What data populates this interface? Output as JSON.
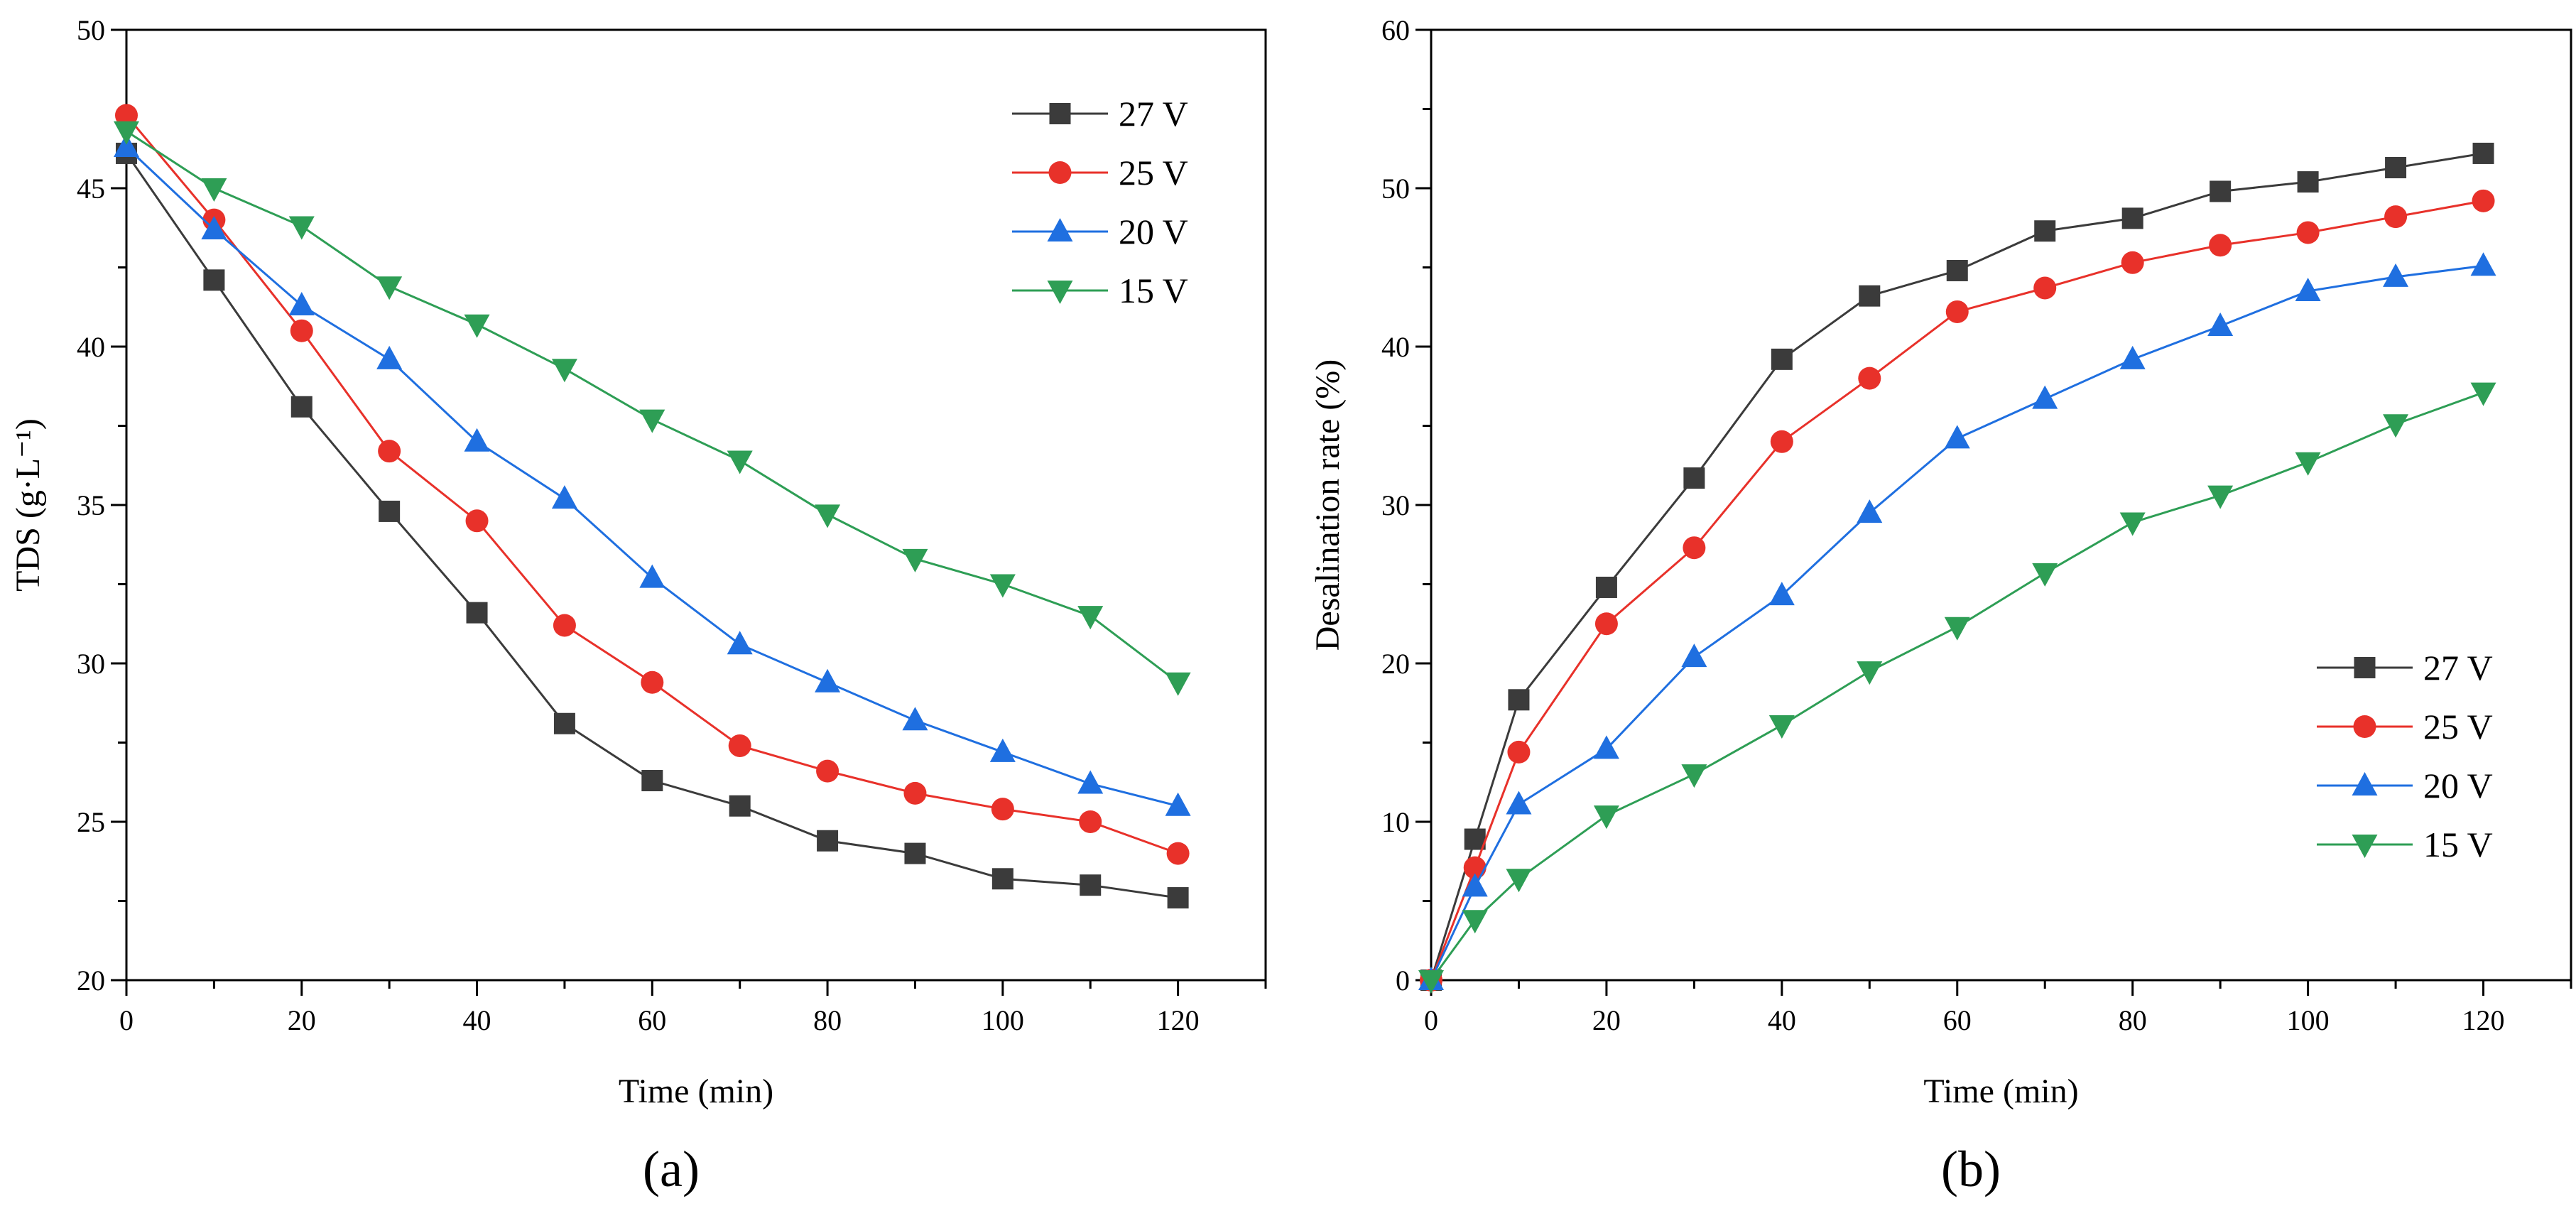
{
  "figure": {
    "background": "#ffffff"
  },
  "series_styles": {
    "27 V": {
      "color": "#3b3b3b",
      "marker": "square"
    },
    "25 V": {
      "color": "#e8312a",
      "marker": "circle"
    },
    "20 V": {
      "color": "#1f6fe0",
      "marker": "triangle-up"
    },
    "15 V": {
      "color": "#2e9e55",
      "marker": "triangle-down"
    }
  },
  "chart_data": [
    {
      "type": "line",
      "panel_label": "(a)",
      "xlabel": "Time (min)",
      "ylabel": "TDS (g·L⁻¹)",
      "xlim": [
        0,
        130
      ],
      "ylim": [
        20,
        50
      ],
      "xticks": [
        0,
        20,
        40,
        60,
        80,
        100,
        120
      ],
      "yticks": [
        20,
        25,
        30,
        35,
        40,
        45,
        50
      ],
      "x_minor_step": 10,
      "y_minor_step": 2.5,
      "legend_position": "top-right",
      "series": [
        {
          "name": "27 V",
          "x": [
            0,
            10,
            20,
            30,
            40,
            50,
            60,
            70,
            80,
            90,
            100,
            110,
            120
          ],
          "values": [
            46.1,
            42.1,
            38.1,
            34.8,
            31.6,
            28.1,
            26.3,
            25.5,
            24.4,
            24.0,
            23.2,
            23.0,
            22.6
          ]
        },
        {
          "name": "25 V",
          "x": [
            0,
            10,
            20,
            30,
            40,
            50,
            60,
            70,
            80,
            90,
            100,
            110,
            120
          ],
          "values": [
            47.3,
            44.0,
            40.5,
            36.7,
            34.5,
            31.2,
            29.4,
            27.4,
            26.6,
            25.9,
            25.4,
            25.0,
            24.0
          ]
        },
        {
          "name": "20 V",
          "x": [
            0,
            10,
            20,
            30,
            40,
            50,
            60,
            70,
            80,
            90,
            100,
            110,
            120
          ],
          "values": [
            46.3,
            43.7,
            41.3,
            39.6,
            37.0,
            35.2,
            32.7,
            30.6,
            29.4,
            28.2,
            27.2,
            26.2,
            25.5
          ]
        },
        {
          "name": "15 V",
          "x": [
            0,
            10,
            20,
            30,
            40,
            50,
            60,
            70,
            80,
            90,
            100,
            110,
            120
          ],
          "values": [
            46.8,
            45.0,
            43.8,
            41.9,
            40.7,
            39.3,
            37.7,
            36.4,
            34.7,
            33.3,
            32.5,
            31.5,
            29.4
          ]
        }
      ]
    },
    {
      "type": "line",
      "panel_label": "(b)",
      "xlabel": "Time (min)",
      "ylabel": "Desalination rate (%)",
      "xlim": [
        0,
        130
      ],
      "ylim": [
        0,
        60
      ],
      "xticks": [
        0,
        20,
        40,
        60,
        80,
        100,
        120
      ],
      "yticks": [
        0,
        10,
        20,
        30,
        40,
        50,
        60
      ],
      "x_minor_step": 10,
      "y_minor_step": 5,
      "legend_position": "bottom-right",
      "series": [
        {
          "name": "27 V",
          "x": [
            0,
            5,
            10,
            20,
            30,
            40,
            50,
            60,
            70,
            80,
            90,
            100,
            110,
            120
          ],
          "values": [
            0,
            8.9,
            17.7,
            24.8,
            31.7,
            39.2,
            43.2,
            44.8,
            47.3,
            48.1,
            49.8,
            50.4,
            51.3,
            52.2
          ]
        },
        {
          "name": "25 V",
          "x": [
            0,
            5,
            10,
            20,
            30,
            40,
            50,
            60,
            70,
            80,
            90,
            100,
            110,
            120
          ],
          "values": [
            0,
            7.1,
            14.4,
            22.5,
            27.3,
            34.0,
            38.0,
            42.2,
            43.7,
            45.3,
            46.4,
            47.2,
            48.2,
            49.2
          ]
        },
        {
          "name": "20 V",
          "x": [
            0,
            5,
            10,
            20,
            30,
            40,
            50,
            60,
            70,
            80,
            90,
            100,
            110,
            120
          ],
          "values": [
            0,
            5.9,
            11.1,
            14.6,
            20.4,
            24.3,
            29.5,
            34.2,
            36.7,
            39.2,
            41.3,
            43.5,
            44.4,
            45.1
          ]
        },
        {
          "name": "15 V",
          "x": [
            0,
            5,
            10,
            20,
            30,
            40,
            50,
            60,
            70,
            80,
            90,
            100,
            110,
            120
          ],
          "values": [
            0,
            3.8,
            6.4,
            10.4,
            13.0,
            16.1,
            19.5,
            22.3,
            25.7,
            28.9,
            30.6,
            32.7,
            35.1,
            37.1
          ]
        }
      ]
    }
  ]
}
